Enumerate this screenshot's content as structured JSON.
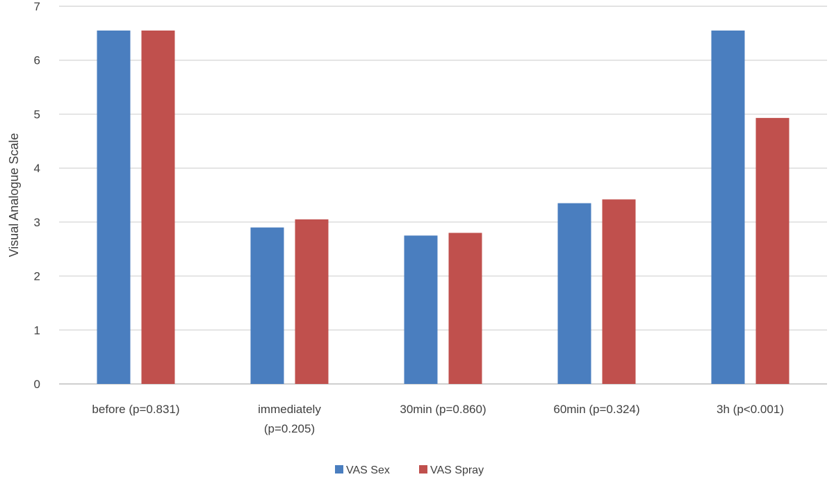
{
  "chart_data": {
    "type": "bar",
    "title": "",
    "xlabel": "",
    "ylabel": "Visual Analogue Scale",
    "ylim": [
      0,
      7
    ],
    "yticks": [
      "0",
      "1",
      "2",
      "3",
      "4",
      "5",
      "6",
      "7"
    ],
    "grid": true,
    "legend_position": "bottom",
    "categories": [
      [
        "before (p=0.831)"
      ],
      [
        "immediately",
        "(p=0.205)"
      ],
      [
        "30min (p=0.860)"
      ],
      [
        "60min (p=0.324)"
      ],
      [
        "3h (p<0.001)"
      ]
    ],
    "series": [
      {
        "name": "VAS Sex",
        "color": "#4a7ebf",
        "values": [
          6.55,
          2.9,
          2.75,
          3.35,
          6.55
        ]
      },
      {
        "name": "VAS Spray",
        "color": "#c0504d",
        "values": [
          6.55,
          3.05,
          2.8,
          3.42,
          4.93
        ]
      }
    ]
  }
}
